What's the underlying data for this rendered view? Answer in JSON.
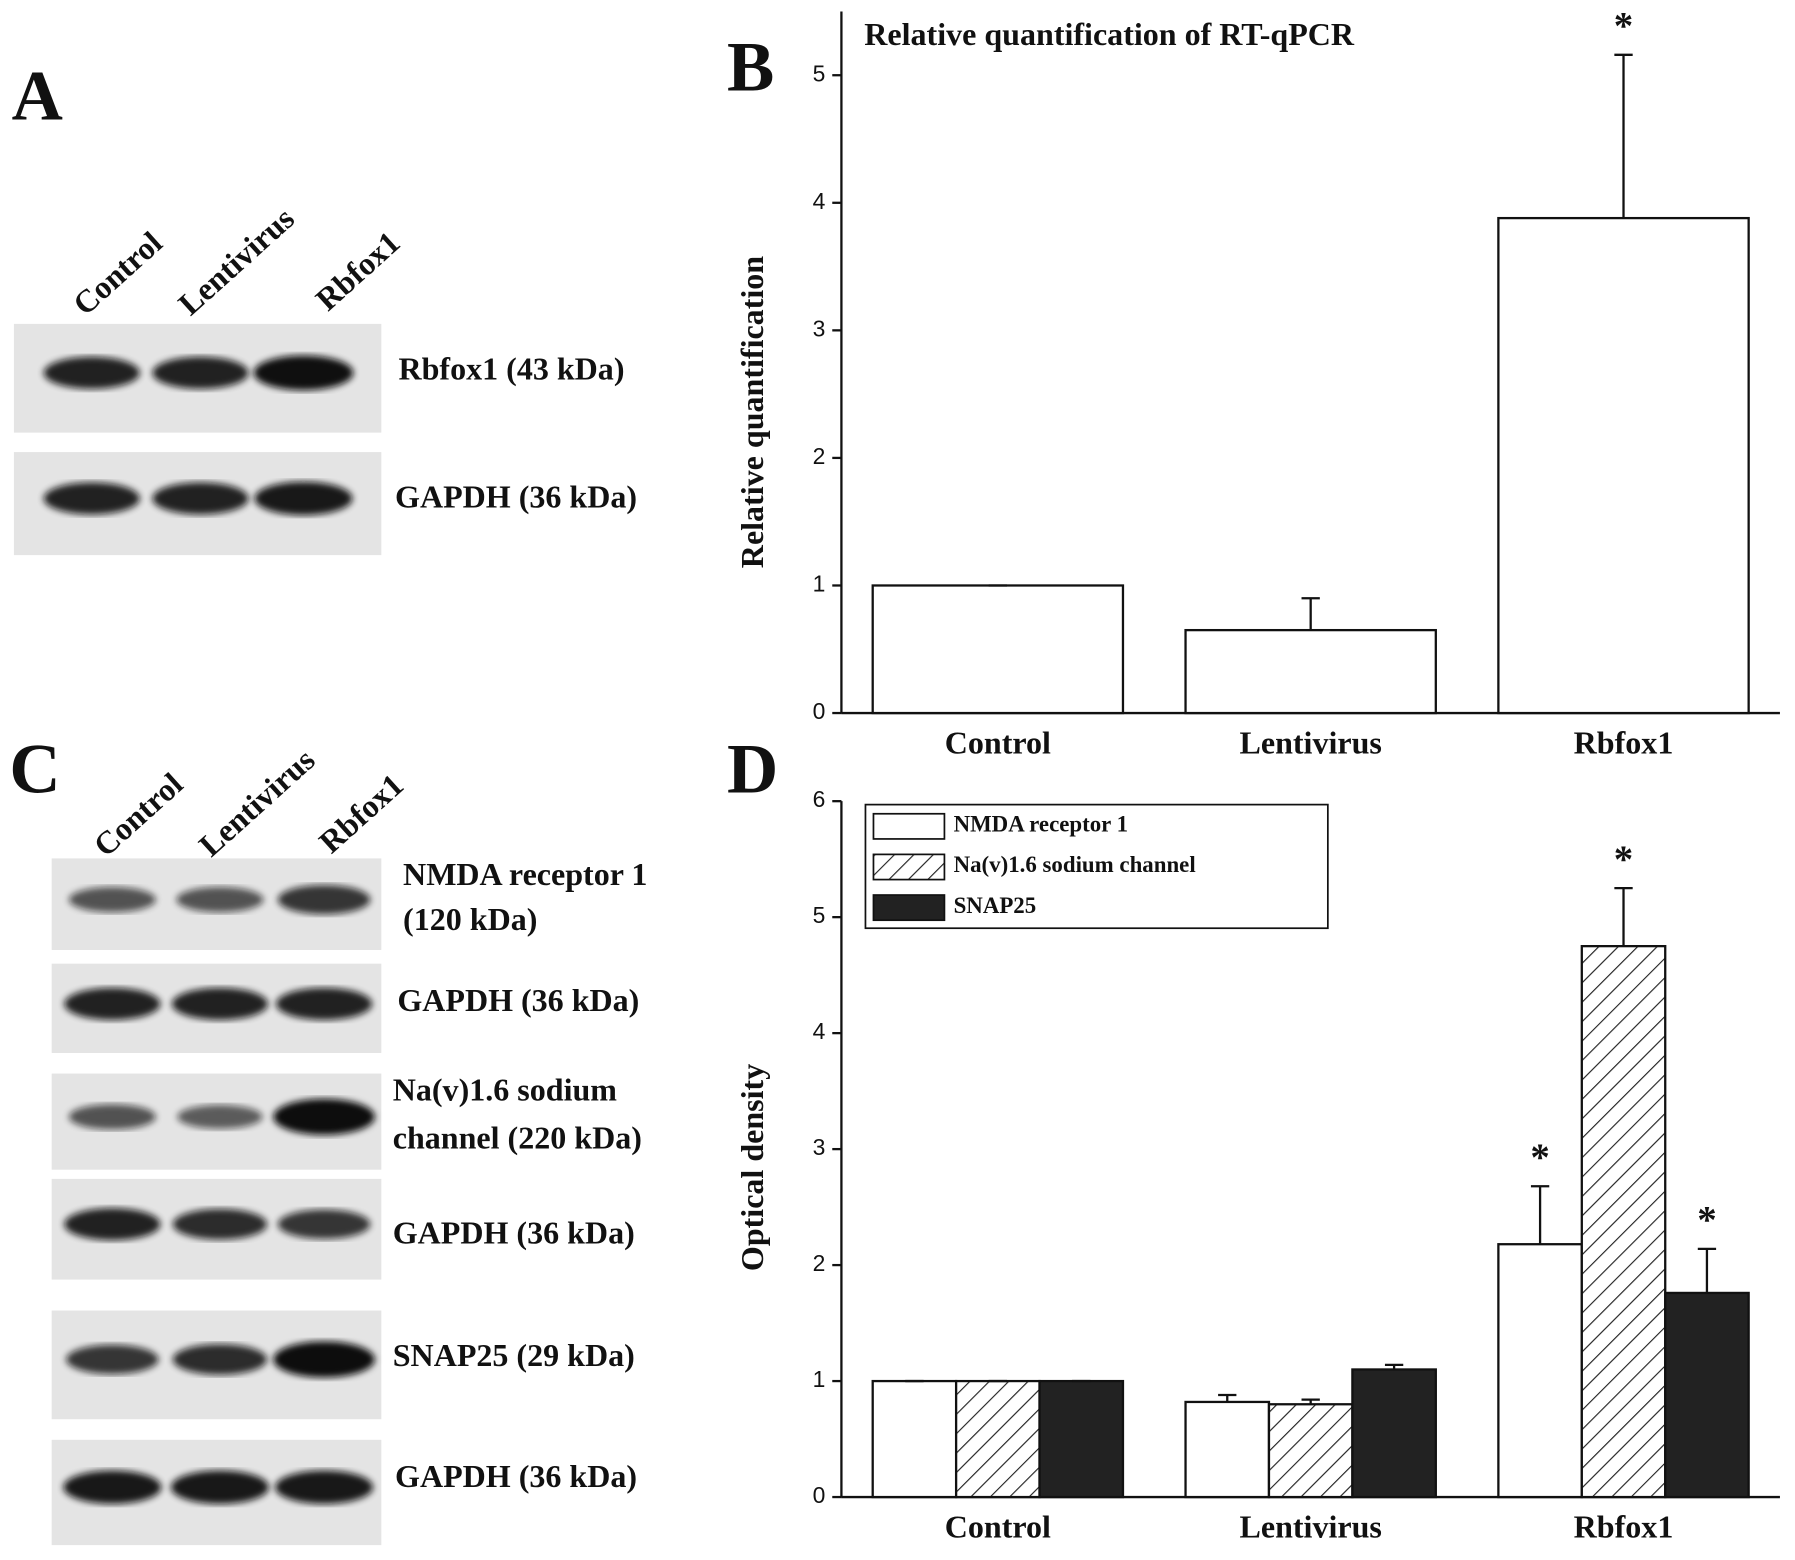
{
  "panel_labels": [
    "A",
    "B",
    "C",
    "D"
  ],
  "blots": [
    {
      "lanes": [
        "Control",
        "Lentivirus",
        "Rbfox1"
      ],
      "bands": [
        [
          "Rbfox1 (43 kDa)"
        ],
        [
          "GAPDH (36 kDa)"
        ]
      ]
    },
    {
      "lanes": [
        "Control",
        "Lentivirus",
        "Rbfox1"
      ],
      "bands": [
        [
          "NMDA receptor 1",
          "(120 kDa)"
        ],
        [
          "GAPDH (36 kDa)"
        ],
        [
          "Na(v)1.6 sodium",
          "channel (220 kDa)"
        ],
        [
          "GAPDH (36 kDa)"
        ],
        [
          "SNAP25 (29 kDa)"
        ],
        [
          "GAPDH (36 kDa)"
        ]
      ]
    }
  ],
  "chart_data": [
    {
      "type": "bar",
      "title": "Relative quantification of RT-qPCR",
      "y_label": "Relative quantification",
      "categories": [
        "Control",
        "Lentivirus",
        "Rbfox1"
      ],
      "values": [
        1,
        0.65,
        3.88
      ],
      "errors": [
        0,
        0.25,
        1.28
      ],
      "significance": [
        null,
        null,
        "*"
      ],
      "color": "#ffffff",
      "ylim": [
        0,
        5.5
      ],
      "yticks": [
        0,
        1,
        2,
        3,
        4,
        5
      ]
    },
    {
      "type": "bar",
      "y_label": "Optical density",
      "categories": [
        "Control",
        "Lentivirus",
        "Rbfox1"
      ],
      "series": [
        {
          "name": "NMDA receptor 1",
          "color": "#ffffff",
          "values": [
            1,
            0.82,
            2.18
          ],
          "errors": [
            0,
            0.06,
            0.5
          ],
          "significance": [
            null,
            null,
            "*"
          ]
        },
        {
          "name": "Na(v)1.6 sodium channel",
          "color": "#ffffff",
          "pattern": "hatch",
          "values": [
            1,
            0.8,
            4.75
          ],
          "errors": [
            0,
            0.04,
            0.5
          ],
          "significance": [
            null,
            null,
            "*"
          ]
        },
        {
          "name": "SNAP25",
          "color": "#222222",
          "values": [
            1,
            1.1,
            1.76
          ],
          "errors": [
            0,
            0.04,
            0.38
          ],
          "significance": [
            null,
            null,
            "*"
          ]
        }
      ],
      "legend": "upper left",
      "ylim": [
        0,
        6
      ],
      "yticks": [
        0,
        1,
        2,
        3,
        4,
        5,
        6
      ]
    }
  ]
}
